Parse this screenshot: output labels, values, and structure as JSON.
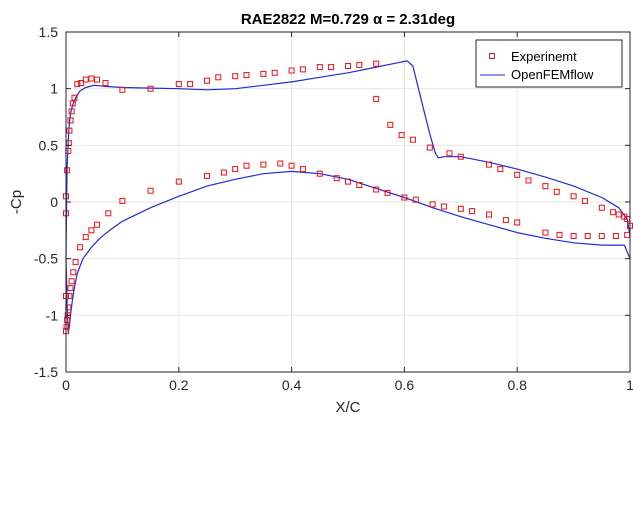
{
  "chart_data": {
    "type": "line",
    "title": "RAE2822   M=0.729  α = 2.31deg",
    "xlabel": "X/C",
    "ylabel": "-Cp",
    "xlim": [
      0,
      1
    ],
    "ylim": [
      -1.5,
      1.5
    ],
    "xticks": [
      0,
      0.2,
      0.4,
      0.6,
      0.8,
      1
    ],
    "xtick_labels": [
      "0",
      "0.2",
      "0.4",
      "0.6",
      "0.8",
      "1"
    ],
    "yticks": [
      -1.5,
      -1,
      -0.5,
      0,
      0.5,
      1,
      1.5
    ],
    "ytick_labels": [
      "-1.5",
      "-1",
      "-0.5",
      "0",
      "0.5",
      "1",
      "1.5"
    ],
    "grid": true,
    "legend_position": "top-right",
    "colors": {
      "experiment": "#e8101a",
      "openfemflow": "#1f2bd8",
      "grid": "#e6e6e6",
      "axis": "#262626"
    },
    "series": [
      {
        "name": "Experinemt",
        "style": "square-markers",
        "points": [
          [
            0.0,
            0.05
          ],
          [
            0.002,
            0.28
          ],
          [
            0.004,
            0.45
          ],
          [
            0.005,
            0.52
          ],
          [
            0.006,
            0.63
          ],
          [
            0.008,
            0.72
          ],
          [
            0.01,
            0.8
          ],
          [
            0.012,
            0.87
          ],
          [
            0.015,
            0.92
          ],
          [
            0.02,
            1.04
          ],
          [
            0.027,
            1.05
          ],
          [
            0.035,
            1.08
          ],
          [
            0.045,
            1.09
          ],
          [
            0.055,
            1.08
          ],
          [
            0.07,
            1.05
          ],
          [
            0.1,
            0.99
          ],
          [
            0.15,
            1.0
          ],
          [
            0.2,
            1.04
          ],
          [
            0.22,
            1.04
          ],
          [
            0.25,
            1.07
          ],
          [
            0.27,
            1.1
          ],
          [
            0.3,
            1.11
          ],
          [
            0.32,
            1.12
          ],
          [
            0.35,
            1.13
          ],
          [
            0.37,
            1.14
          ],
          [
            0.4,
            1.16
          ],
          [
            0.42,
            1.17
          ],
          [
            0.45,
            1.19
          ],
          [
            0.47,
            1.19
          ],
          [
            0.5,
            1.2
          ],
          [
            0.52,
            1.21
          ],
          [
            0.55,
            1.22
          ],
          [
            0.55,
            0.91
          ],
          [
            0.575,
            0.68
          ],
          [
            0.595,
            0.59
          ],
          [
            0.615,
            0.55
          ],
          [
            0.645,
            0.48
          ],
          [
            0.68,
            0.43
          ],
          [
            0.7,
            0.4
          ],
          [
            0.75,
            0.33
          ],
          [
            0.77,
            0.29
          ],
          [
            0.8,
            0.24
          ],
          [
            0.82,
            0.19
          ],
          [
            0.85,
            0.14
          ],
          [
            0.87,
            0.09
          ],
          [
            0.9,
            0.05
          ],
          [
            0.92,
            0.01
          ],
          [
            0.95,
            -0.05
          ],
          [
            0.97,
            -0.09
          ],
          [
            0.98,
            -0.11
          ],
          [
            0.99,
            -0.13
          ],
          [
            0.995,
            -0.15
          ],
          [
            1.0,
            -0.21
          ],
          [
            0.995,
            -0.29
          ],
          [
            0.975,
            -0.3
          ],
          [
            0.95,
            -0.3
          ],
          [
            0.925,
            -0.3
          ],
          [
            0.9,
            -0.3
          ],
          [
            0.875,
            -0.29
          ],
          [
            0.85,
            -0.27
          ],
          [
            0.8,
            -0.18
          ],
          [
            0.78,
            -0.16
          ],
          [
            0.75,
            -0.11
          ],
          [
            0.72,
            -0.08
          ],
          [
            0.7,
            -0.06
          ],
          [
            0.67,
            -0.04
          ],
          [
            0.65,
            -0.02
          ],
          [
            0.62,
            0.02
          ],
          [
            0.6,
            0.04
          ],
          [
            0.57,
            0.08
          ],
          [
            0.55,
            0.11
          ],
          [
            0.52,
            0.15
          ],
          [
            0.5,
            0.18
          ],
          [
            0.48,
            0.21
          ],
          [
            0.45,
            0.25
          ],
          [
            0.42,
            0.29
          ],
          [
            0.4,
            0.32
          ],
          [
            0.38,
            0.34
          ],
          [
            0.35,
            0.33
          ],
          [
            0.32,
            0.32
          ],
          [
            0.3,
            0.29
          ],
          [
            0.28,
            0.26
          ],
          [
            0.25,
            0.23
          ],
          [
            0.2,
            0.18
          ],
          [
            0.15,
            0.1
          ],
          [
            0.1,
            0.01
          ],
          [
            0.075,
            -0.1
          ],
          [
            0.055,
            -0.2
          ],
          [
            0.045,
            -0.25
          ],
          [
            0.035,
            -0.31
          ],
          [
            0.025,
            -0.4
          ],
          [
            0.017,
            -0.53
          ],
          [
            0.013,
            -0.62
          ],
          [
            0.01,
            -0.7
          ],
          [
            0.008,
            -0.76
          ],
          [
            0.006,
            -0.83
          ],
          [
            0.004,
            -0.93
          ],
          [
            0.003,
            -1.0
          ],
          [
            0.002,
            -1.04
          ],
          [
            0.001,
            -1.1
          ],
          [
            0.0,
            -1.14
          ],
          [
            0.0,
            -0.83
          ],
          [
            0.0,
            -0.1
          ]
        ]
      },
      {
        "name": "OpenFEMflow",
        "style": "line",
        "upper": [
          [
            0.0,
            -0.5
          ],
          [
            0.001,
            0.0
          ],
          [
            0.002,
            0.3
          ],
          [
            0.004,
            0.55
          ],
          [
            0.006,
            0.7
          ],
          [
            0.008,
            0.78
          ],
          [
            0.012,
            0.86
          ],
          [
            0.018,
            0.93
          ],
          [
            0.025,
            0.98
          ],
          [
            0.035,
            1.01
          ],
          [
            0.05,
            1.03
          ],
          [
            0.07,
            1.02
          ],
          [
            0.1,
            1.01
          ],
          [
            0.15,
            1.005
          ],
          [
            0.2,
            1.0
          ],
          [
            0.25,
            0.99
          ],
          [
            0.3,
            1.0
          ],
          [
            0.35,
            1.03
          ],
          [
            0.4,
            1.06
          ],
          [
            0.45,
            1.1
          ],
          [
            0.5,
            1.14
          ],
          [
            0.55,
            1.19
          ],
          [
            0.58,
            1.22
          ],
          [
            0.605,
            1.245
          ],
          [
            0.615,
            1.2
          ],
          [
            0.625,
            1.0
          ],
          [
            0.635,
            0.8
          ],
          [
            0.645,
            0.6
          ],
          [
            0.655,
            0.43
          ],
          [
            0.66,
            0.39
          ],
          [
            0.67,
            0.4
          ],
          [
            0.7,
            0.4
          ],
          [
            0.75,
            0.35
          ],
          [
            0.8,
            0.29
          ],
          [
            0.85,
            0.22
          ],
          [
            0.9,
            0.14
          ],
          [
            0.95,
            0.04
          ],
          [
            0.98,
            -0.05
          ],
          [
            0.995,
            -0.15
          ],
          [
            1.0,
            -0.3
          ]
        ],
        "lower": [
          [
            0.0,
            -0.5
          ],
          [
            0.001,
            -0.7
          ],
          [
            0.002,
            -0.9
          ],
          [
            0.003,
            -1.05
          ],
          [
            0.004,
            -1.15
          ],
          [
            0.006,
            -1.1
          ],
          [
            0.008,
            -1.0
          ],
          [
            0.011,
            -0.88
          ],
          [
            0.015,
            -0.75
          ],
          [
            0.02,
            -0.63
          ],
          [
            0.03,
            -0.5
          ],
          [
            0.045,
            -0.4
          ],
          [
            0.06,
            -0.32
          ],
          [
            0.08,
            -0.24
          ],
          [
            0.1,
            -0.17
          ],
          [
            0.15,
            -0.05
          ],
          [
            0.2,
            0.05
          ],
          [
            0.25,
            0.14
          ],
          [
            0.3,
            0.2
          ],
          [
            0.35,
            0.25
          ],
          [
            0.4,
            0.27
          ],
          [
            0.45,
            0.25
          ],
          [
            0.5,
            0.2
          ],
          [
            0.55,
            0.12
          ],
          [
            0.6,
            0.04
          ],
          [
            0.65,
            -0.05
          ],
          [
            0.7,
            -0.13
          ],
          [
            0.75,
            -0.2
          ],
          [
            0.8,
            -0.27
          ],
          [
            0.85,
            -0.32
          ],
          [
            0.9,
            -0.36
          ],
          [
            0.95,
            -0.38
          ],
          [
            0.99,
            -0.38
          ],
          [
            1.0,
            -0.5
          ]
        ]
      }
    ]
  }
}
